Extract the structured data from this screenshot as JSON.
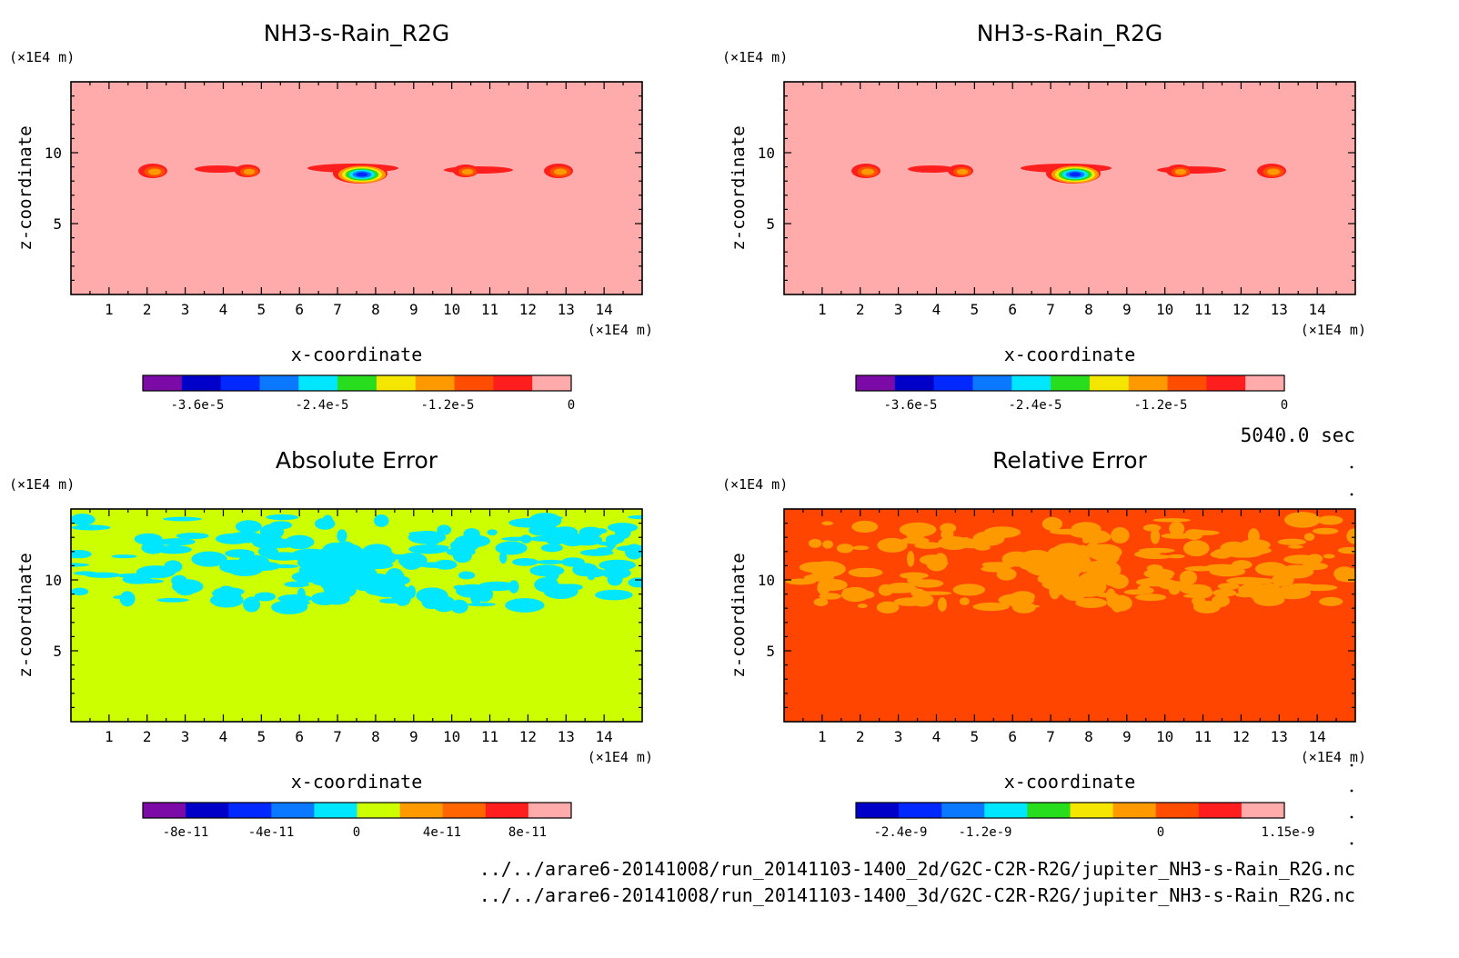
{
  "panels": [
    {
      "id": "top-left",
      "title": "NH3-s-Rain_R2G",
      "bg": "#ffabab",
      "field": "rain",
      "colorbar_colors": [
        "#7b0aa7",
        "#0000c8",
        "#0028ff",
        "#0a78ff",
        "#00e6ff",
        "#28dc1e",
        "#f5e600",
        "#ff9900",
        "#ff4d00",
        "#ff1e1e",
        "#ffabab"
      ],
      "colorbar_ticks": [
        "-3.6e-5",
        "-2.4e-5",
        "-1.2e-5",
        "0"
      ]
    },
    {
      "id": "top-right",
      "title": "NH3-s-Rain_R2G",
      "bg": "#ffabab",
      "field": "rain",
      "colorbar_colors": [
        "#7b0aa7",
        "#0000c8",
        "#0028ff",
        "#0a78ff",
        "#00e6ff",
        "#28dc1e",
        "#f5e600",
        "#ff9900",
        "#ff4d00",
        "#ff1e1e",
        "#ffabab"
      ],
      "colorbar_ticks": [
        "-3.6e-5",
        "-2.4e-5",
        "-1.2e-5",
        "0"
      ]
    },
    {
      "id": "bottom-left",
      "title": "Absolute Error",
      "bg": "#ccff00",
      "field": "abs",
      "patch_color": "#00e6ff",
      "colorbar_colors": [
        "#7b0aa7",
        "#0000c8",
        "#0028ff",
        "#0a78ff",
        "#00e6ff",
        "#ccff00",
        "#ff9900",
        "#ff6600",
        "#ff1e1e",
        "#ffabab"
      ],
      "colorbar_ticks": [
        "-8e-11",
        "-4e-11",
        "0",
        "4e-11",
        "8e-11"
      ]
    },
    {
      "id": "bottom-right",
      "title": "Relative Error",
      "bg": "#ff4500",
      "field": "rel",
      "patch_color": "#ff9900",
      "colorbar_colors": [
        "#0000c8",
        "#0028ff",
        "#0a78ff",
        "#00e6ff",
        "#28dc1e",
        "#f5e600",
        "#ff9900",
        "#ff4d00",
        "#ff1e1e",
        "#ffabab"
      ],
      "colorbar_ticks": [
        "-2.4e-9",
        "-1.2e-9",
        "0",
        "1.15e-9"
      ]
    }
  ],
  "axis": {
    "xlabel": "x-coordinate",
    "ylabel": "z-coordinate",
    "unit": "(×1E4 m)",
    "xticks": [
      "1",
      "2",
      "3",
      "4",
      "5",
      "6",
      "7",
      "8",
      "9",
      "10",
      "11",
      "12",
      "13",
      "14"
    ],
    "yticks": [
      "5",
      "10"
    ],
    "xlim": [
      0,
      15
    ],
    "ylim": [
      0,
      15
    ]
  },
  "time_label": "5040.0 sec",
  "footer": [
    "../../arare6-20141008/run_20141103-1400_2d/G2C-C2R-R2G/jupiter_NH3-s-Rain_R2G.nc",
    "../../arare6-20141008/run_20141103-1400_3d/G2C-C2R-R2G/jupiter_NH3-s-Rain_R2G.nc"
  ],
  "chart_data": [
    {
      "type": "heatmap",
      "title": "NH3-s-Rain_R2G",
      "xlabel": "x-coordinate",
      "ylabel": "z-coordinate",
      "xlim": [
        0,
        15
      ],
      "ylim": [
        0,
        15
      ],
      "colorbar_range": [
        -4.2e-05,
        0
      ],
      "features": [
        {
          "x_center": 2.3,
          "z_center": 8.6,
          "min_value": -6e-06
        },
        {
          "x_center": 4.2,
          "z_center": 8.7,
          "min_value": -6e-06
        },
        {
          "x_center": 7.8,
          "z_center": 8.6,
          "min_value": -4e-05
        },
        {
          "x_center": 11.0,
          "z_center": 8.7,
          "min_value": -6e-06
        },
        {
          "x_center": 12.7,
          "z_center": 8.6,
          "min_value": -6e-06
        }
      ]
    },
    {
      "type": "heatmap",
      "title": "NH3-s-Rain_R2G",
      "xlabel": "x-coordinate",
      "ylabel": "z-coordinate",
      "xlim": [
        0,
        15
      ],
      "ylim": [
        0,
        15
      ],
      "colorbar_range": [
        -4.2e-05,
        0
      ],
      "features": [
        {
          "x_center": 2.3,
          "z_center": 8.6,
          "min_value": -6e-06
        },
        {
          "x_center": 4.2,
          "z_center": 8.7,
          "min_value": -6e-06
        },
        {
          "x_center": 7.8,
          "z_center": 8.6,
          "min_value": -4e-05
        },
        {
          "x_center": 11.0,
          "z_center": 8.7,
          "min_value": -6e-06
        },
        {
          "x_center": 12.7,
          "z_center": 8.6,
          "min_value": -6e-06
        }
      ]
    },
    {
      "type": "heatmap",
      "title": "Absolute Error",
      "xlabel": "x-coordinate",
      "ylabel": "z-coordinate",
      "xlim": [
        0,
        15
      ],
      "ylim": [
        0,
        15
      ],
      "colorbar_range": [
        -1e-10,
        1e-10
      ],
      "dominant_value": 0,
      "patch_band_z": [
        8,
        14.5
      ]
    },
    {
      "type": "heatmap",
      "title": "Relative Error",
      "xlabel": "x-coordinate",
      "ylabel": "z-coordinate",
      "xlim": [
        0,
        15
      ],
      "ylim": [
        0,
        15
      ],
      "colorbar_range": [
        -3e-09,
        1.15e-09
      ],
      "dominant_value": 5e-10,
      "patch_band_z": [
        8,
        14.5
      ]
    }
  ]
}
